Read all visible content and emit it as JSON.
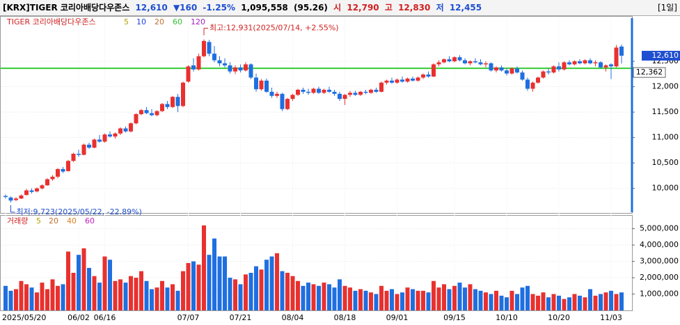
{
  "header": {
    "title": "[KRX]TIGER 코리아배당다우존스",
    "price": "12,610",
    "change": "▼160",
    "change_pct": "-1.25%",
    "volume": "1,095,558",
    "volume_ratio": "(95.26)",
    "open_label": "시",
    "open": "12,790",
    "high_label": "고",
    "high": "12,830",
    "low_label": "저",
    "low": "12,455",
    "period": "[1일]"
  },
  "chart_data": {
    "type": "candlestick",
    "legend": {
      "name": "TIGER 코리아배당다우존스",
      "ma": [
        "5",
        "10",
        "20",
        "60",
        "120"
      ],
      "ma_colors": [
        "#b0a000",
        "#1f3fe0",
        "#c07030",
        "#30c030",
        "#a020c0"
      ]
    },
    "volume_legend": {
      "name": "거래량",
      "ma": [
        "5",
        "20",
        "40",
        "60"
      ],
      "ma_colors": [
        "#b0a000",
        "#c07030",
        "#e08020",
        "#c020c0"
      ]
    },
    "up_color": "#e8312f",
    "down_color": "#1f6fe0",
    "annotations": [
      {
        "text": "최고:12,931(2025/07/14, +2.55%)",
        "index": 38
      },
      {
        "text": "최저:9,723(2025/05/22, -22.89%)",
        "index": 1
      }
    ],
    "ref_line": {
      "value": 12362,
      "label": "12,362",
      "color": "#33cc33"
    },
    "last_label": {
      "value": 12610,
      "label": "12,610"
    },
    "categories": [
      "2025/05/20",
      null,
      null,
      null,
      null,
      null,
      null,
      null,
      null,
      null,
      null,
      null,
      null,
      null,
      "06/02",
      null,
      null,
      null,
      null,
      "06/16",
      null,
      null,
      null,
      null,
      null,
      null,
      null,
      null,
      null,
      null,
      null,
      null,
      null,
      null,
      null,
      "07/07",
      null,
      null,
      null,
      null,
      null,
      null,
      null,
      null,
      null,
      "07/21",
      null,
      null,
      null,
      null,
      null,
      null,
      null,
      null,
      null,
      "08/04",
      null,
      null,
      null,
      null,
      null,
      null,
      null,
      null,
      null,
      "08/18",
      null,
      null,
      null,
      null,
      null,
      null,
      null,
      null,
      null,
      "09/01",
      null,
      null,
      null,
      null,
      null,
      null,
      null,
      null,
      null,
      null,
      "09/15",
      null,
      null,
      null,
      null,
      null,
      null,
      null,
      null,
      null,
      "10/10",
      null,
      null,
      null,
      null,
      null,
      null,
      null,
      null,
      null,
      "10/20",
      null,
      null,
      null,
      null,
      null,
      null,
      null,
      null,
      null,
      "11/03",
      null,
      null
    ],
    "open": [
      9850,
      9820,
      9770,
      9800,
      9870,
      9960,
      9940,
      10000,
      10060,
      10180,
      10230,
      10380,
      10340,
      10540,
      10680,
      10660,
      10860,
      10800,
      10960,
      10920,
      11060,
      11020,
      11080,
      11180,
      11120,
      11280,
      11460,
      11540,
      11480,
      11440,
      11520,
      11660,
      11600,
      11800,
      11620,
      12100,
      12420,
      12340,
      12600,
      12880,
      12650,
      12520,
      12460,
      12420,
      12300,
      12380,
      12320,
      12440,
      12180,
      11950,
      12120,
      11900,
      11820,
      11860,
      11560,
      11760,
      11840,
      11940,
      11900,
      11880,
      11960,
      11880,
      11940,
      11900,
      11860,
      11760,
      11840,
      11880,
      11840,
      11900,
      11880,
      11940,
      11900,
      12080,
      12120,
      12080,
      12140,
      12100,
      12160,
      12120,
      12180,
      12240,
      12200,
      12440,
      12480,
      12540,
      12500,
      12580,
      12520,
      12460,
      12500,
      12480,
      12440,
      12460,
      12320,
      12380,
      12320,
      12260,
      12360,
      12280,
      12140,
      11960,
      12080,
      12180,
      12300,
      12280,
      12400,
      12340,
      12480,
      12440,
      12500,
      12460,
      12520,
      12460,
      12480,
      12380,
      12440,
      12400,
      12790
    ],
    "high": [
      9880,
      9840,
      9830,
      9880,
      9990,
      10000,
      10020,
      10080,
      10200,
      10260,
      10400,
      10420,
      10560,
      10700,
      10760,
      10880,
      10900,
      10980,
      11050,
      11080,
      11120,
      11100,
      11200,
      11220,
      11300,
      11480,
      11560,
      11600,
      11560,
      11540,
      11680,
      11720,
      11820,
      11860,
      12100,
      12420,
      12560,
      12650,
      12931,
      12920,
      12800,
      12600,
      12560,
      12480,
      12420,
      12440,
      12480,
      12460,
      12260,
      12150,
      12160,
      11980,
      11900,
      11880,
      11780,
      11860,
      11960,
      11980,
      11960,
      11980,
      12000,
      11960,
      12000,
      11940,
      11900,
      11860,
      11920,
      11920,
      11920,
      11940,
      11960,
      11980,
      12100,
      12140,
      12180,
      12160,
      12200,
      12180,
      12200,
      12200,
      12260,
      12300,
      12460,
      12520,
      12560,
      12600,
      12600,
      12620,
      12560,
      12520,
      12560,
      12540,
      12500,
      12480,
      12400,
      12420,
      12360,
      12380,
      12400,
      12320,
      12180,
      12100,
      12200,
      12320,
      12360,
      12420,
      12480,
      12500,
      12520,
      12520,
      12540,
      12540,
      12560,
      12520,
      12500,
      12440,
      12460,
      12820,
      12830
    ],
    "low": [
      9800,
      9723,
      9750,
      9790,
      9860,
      9900,
      9920,
      9980,
      10050,
      10150,
      10200,
      10300,
      10330,
      10520,
      10620,
      10650,
      10780,
      10790,
      10900,
      10900,
      11000,
      10980,
      11050,
      11100,
      11100,
      11260,
      11440,
      11460,
      11420,
      11420,
      11500,
      11560,
      11580,
      11500,
      11600,
      12080,
      12300,
      12320,
      12580,
      12600,
      12480,
      12400,
      12380,
      12260,
      12250,
      12280,
      12300,
      12150,
      11900,
      11920,
      11880,
      11780,
      11780,
      11520,
      11540,
      11720,
      11820,
      11860,
      11840,
      11860,
      11860,
      11860,
      11880,
      11820,
      11720,
      11640,
      11800,
      11820,
      11820,
      11850,
      11860,
      11880,
      11890,
      12040,
      12060,
      12060,
      12080,
      12080,
      12100,
      12100,
      12150,
      12180,
      12190,
      12400,
      12460,
      12480,
      12480,
      12500,
      12440,
      12420,
      12460,
      12420,
      12380,
      12300,
      12280,
      12300,
      12220,
      12240,
      12260,
      12120,
      11920,
      11900,
      12060,
      12160,
      12240,
      12260,
      12300,
      12320,
      12420,
      12420,
      12440,
      12440,
      12440,
      12400,
      12360,
      12300,
      12150,
      12380,
      12455
    ],
    "close": [
      9830,
      9760,
      9800,
      9860,
      9960,
      9930,
      10000,
      10060,
      10180,
      10230,
      10380,
      10330,
      10540,
      10680,
      10660,
      10860,
      10800,
      10960,
      10920,
      11060,
      11020,
      11080,
      11180,
      11120,
      11280,
      11460,
      11540,
      11480,
      11440,
      11520,
      11660,
      11600,
      11800,
      11620,
      12080,
      12400,
      12340,
      12600,
      12900,
      12650,
      12520,
      12460,
      12420,
      12300,
      12380,
      12320,
      12440,
      12180,
      11950,
      12120,
      11900,
      11820,
      11860,
      11560,
      11760,
      11840,
      11940,
      11900,
      11880,
      11960,
      11880,
      11940,
      11900,
      11860,
      11760,
      11840,
      11880,
      11840,
      11900,
      11880,
      11940,
      11900,
      12080,
      12120,
      12080,
      12140,
      12100,
      12160,
      12120,
      12180,
      12240,
      12200,
      12440,
      12480,
      12540,
      12500,
      12580,
      12520,
      12460,
      12500,
      12480,
      12440,
      12460,
      12320,
      12380,
      12320,
      12260,
      12360,
      12280,
      12140,
      11960,
      12080,
      12180,
      12300,
      12280,
      12400,
      12340,
      12480,
      12440,
      12500,
      12460,
      12520,
      12460,
      12480,
      12380,
      12420,
      12400,
      12770,
      12610
    ],
    "volume": [
      1500000,
      1200000,
      1300000,
      1800000,
      1600000,
      1400000,
      1100000,
      1700000,
      1300000,
      1900000,
      1500000,
      1600000,
      3600000,
      2300000,
      3400000,
      3800000,
      2600000,
      2100000,
      1700000,
      3300000,
      3100000,
      1800000,
      1900000,
      1700000,
      2100000,
      2000000,
      2400000,
      1800000,
      1300000,
      1400000,
      1800000,
      1400000,
      1600000,
      1200000,
      2400000,
      2900000,
      3000000,
      2800000,
      5200000,
      3400000,
      4400000,
      3300000,
      3300000,
      2000000,
      1900000,
      1600000,
      2200000,
      2300000,
      2700000,
      2500000,
      3100000,
      3300000,
      3500000,
      2400000,
      2300000,
      2100000,
      1800000,
      1500000,
      1700000,
      1600000,
      1500000,
      1700000,
      1600000,
      1400000,
      1900000,
      1500000,
      1400000,
      1200000,
      1300000,
      1200000,
      1100000,
      1000000,
      1500000,
      1200000,
      1300000,
      1000000,
      1100000,
      1400000,
      1300000,
      1200000,
      1200000,
      1100000,
      1800000,
      1400000,
      1600000,
      1300000,
      1500000,
      1700000,
      1400000,
      1600000,
      1300000,
      1200000,
      1100000,
      1000000,
      1200000,
      900000,
      800000,
      1200000,
      1000000,
      1400000,
      1500000,
      1000000,
      900000,
      1100000,
      800000,
      1000000,
      900000,
      700000,
      800000,
      1000000,
      900000,
      800000,
      1300000,
      900000,
      1000000,
      1100000,
      1200000,
      1000000,
      1100000
    ],
    "ylim": [
      9530,
      13350
    ],
    "yticks": [
      {
        "value": 10000,
        "label": "10,000"
      },
      {
        "value": 10500,
        "label": "10,500"
      },
      {
        "value": 11000,
        "label": "11,000"
      },
      {
        "value": 11500,
        "label": "11,500"
      },
      {
        "value": 12000,
        "label": "12,000"
      },
      {
        "value": 12500,
        "label": "12,500"
      }
    ],
    "vlim": [
      0,
      5750000
    ],
    "vticks": [
      {
        "value": 1000000,
        "label": "1,000,000"
      },
      {
        "value": 2000000,
        "label": "2,000,000"
      },
      {
        "value": 3000000,
        "label": "3,000,000"
      },
      {
        "value": 4000000,
        "label": "4,000,000"
      },
      {
        "value": 5000000,
        "label": "5,000,000"
      }
    ],
    "grid": true
  }
}
